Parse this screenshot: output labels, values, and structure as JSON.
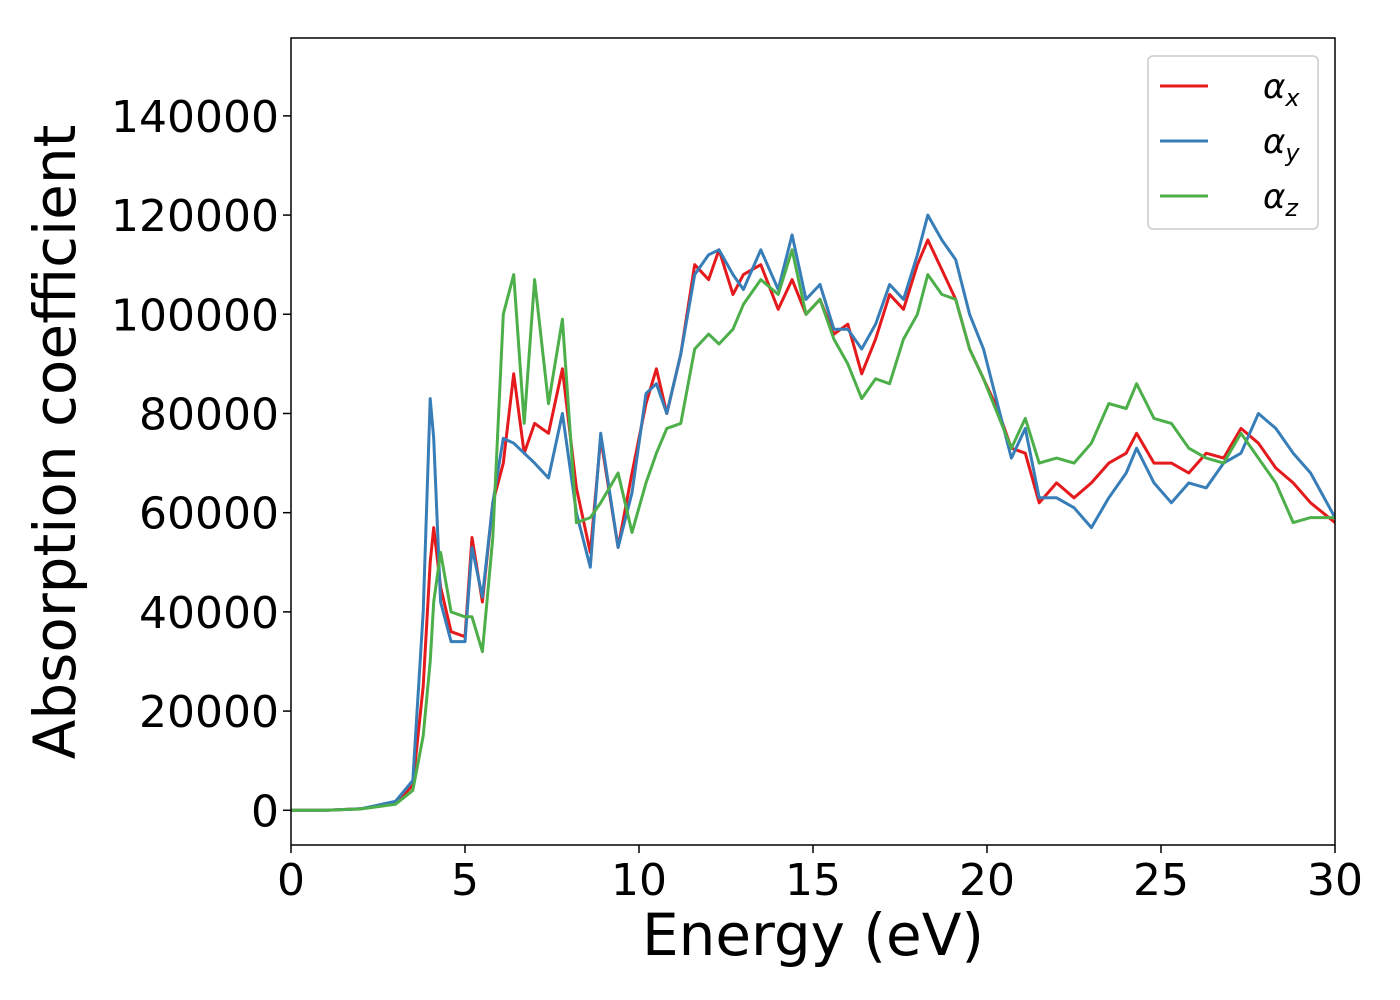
{
  "chart_data": {
    "type": "line",
    "x_label": "Energy (eV)",
    "y_label": "Absorption coefficient",
    "x": [
      0,
      1,
      2,
      3,
      3.5,
      3.8,
      4.0,
      4.1,
      4.3,
      4.6,
      5.0,
      5.2,
      5.5,
      5.8,
      6.1,
      6.4,
      6.7,
      7.0,
      7.4,
      7.8,
      8.2,
      8.6,
      8.9,
      9.4,
      9.8,
      10.2,
      10.5,
      10.8,
      11.2,
      11.6,
      12.0,
      12.3,
      12.7,
      13.0,
      13.5,
      14.0,
      14.4,
      14.8,
      15.2,
      15.6,
      16.0,
      16.4,
      16.8,
      17.2,
      17.6,
      18.0,
      18.3,
      18.7,
      19.1,
      19.5,
      19.9,
      20.3,
      20.7,
      21.1,
      21.5,
      22.0,
      22.5,
      23.0,
      23.5,
      24.0,
      24.3,
      24.8,
      25.3,
      25.8,
      26.3,
      26.8,
      27.3,
      27.8,
      28.3,
      28.8,
      29.3,
      30
    ],
    "series": [
      {
        "name": "αx",
        "color": "#e41a1c",
        "values": [
          0,
          0,
          300,
          1500,
          5000,
          25000,
          50000,
          57000,
          45000,
          36000,
          35000,
          55000,
          42000,
          62000,
          70000,
          88000,
          72000,
          78000,
          76000,
          89000,
          65000,
          52000,
          75000,
          53000,
          68000,
          82000,
          89000,
          80000,
          92000,
          110000,
          107000,
          113000,
          104000,
          108000,
          110000,
          101000,
          107000,
          100000,
          103000,
          96000,
          98000,
          88000,
          95000,
          104000,
          101000,
          110000,
          115000,
          109000,
          103000,
          93000,
          87000,
          81000,
          73000,
          72000,
          62000,
          66000,
          63000,
          66000,
          70000,
          72000,
          76000,
          70000,
          70000,
          68000,
          72000,
          71000,
          77000,
          74000,
          69000,
          66000,
          62000,
          58000
        ]
      },
      {
        "name": "αy",
        "color": "#377eb8",
        "values": [
          0,
          0,
          300,
          1800,
          6000,
          40000,
          83000,
          75000,
          42000,
          34000,
          34000,
          53000,
          43000,
          62000,
          75000,
          74000,
          72000,
          70000,
          67000,
          80000,
          60000,
          49000,
          76000,
          53000,
          64000,
          84000,
          86000,
          80000,
          92000,
          108000,
          112000,
          113000,
          108000,
          105000,
          113000,
          105000,
          116000,
          103000,
          106000,
          97000,
          97000,
          93000,
          98000,
          106000,
          103000,
          112000,
          120000,
          115000,
          111000,
          100000,
          93000,
          82000,
          71000,
          77000,
          63000,
          63000,
          61000,
          57000,
          63000,
          68000,
          73000,
          66000,
          62000,
          66000,
          65000,
          70000,
          72000,
          80000,
          77000,
          72000,
          68000,
          59000
        ]
      },
      {
        "name": "αz",
        "color": "#4daf4a",
        "values": [
          0,
          0,
          250,
          1200,
          4000,
          15000,
          30000,
          42000,
          52000,
          40000,
          39000,
          39000,
          32000,
          55000,
          100000,
          108000,
          78000,
          107000,
          82000,
          99000,
          58000,
          59000,
          62000,
          68000,
          56000,
          66000,
          72000,
          77000,
          78000,
          93000,
          96000,
          94000,
          97000,
          102000,
          107000,
          104000,
          113000,
          100000,
          103000,
          95000,
          90000,
          83000,
          87000,
          86000,
          95000,
          100000,
          108000,
          104000,
          103000,
          93000,
          87000,
          80000,
          73000,
          79000,
          70000,
          71000,
          70000,
          74000,
          82000,
          81000,
          86000,
          79000,
          78000,
          73000,
          71000,
          70000,
          76000,
          71000,
          66000,
          58000,
          59000,
          59000
        ]
      }
    ],
    "xlim": [
      0,
      30
    ],
    "xticks": [
      0,
      5,
      10,
      15,
      20,
      25,
      30
    ],
    "ylim": [
      -7000,
      155700
    ],
    "yticks": [
      0,
      20000,
      40000,
      60000,
      80000,
      100000,
      120000,
      140000
    ],
    "legend": "upper right",
    "grid": false
  }
}
